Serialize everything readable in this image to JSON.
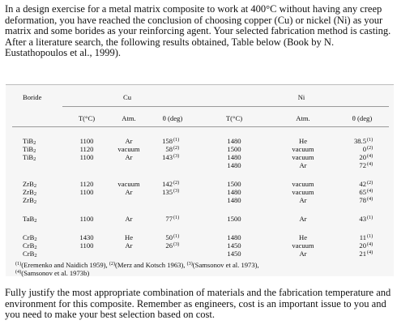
{
  "intro_text": "In a design exercise for a metal matrix composite to work at 400°C without having any creep deformation, you have reached the conclusion of choosing copper (Cu) or nickel (Ni) as your matrix and some borides as your reinforcing agent. Your selected fabrication method is casting. After a literature search, the following results obtained, Table below (Book by N. Eustathopoulos et al., 1999).",
  "table": {
    "boride_header": "Boride",
    "cu_header": "Cu",
    "ni_header": "Ni",
    "cu_t_header": "T(°C)",
    "cu_atm_header": "Atm.",
    "cu_theta_header": "θ (deg)",
    "ni_t_header": "T(°C)",
    "ni_atm_header": "Atm.",
    "ni_theta_header": "θ (deg)",
    "rows": [
      {
        "base": "TiB",
        "sub": "2",
        "cu_t": "1100",
        "cu_atm": "Ar",
        "cu_theta": "158",
        "cu_ref": "(1)",
        "ni_t": "1480",
        "ni_atm": "He",
        "ni_theta": "38.5",
        "ni_ref": "(1)"
      },
      {
        "base": "TiB",
        "sub": "2",
        "cu_t": "1120",
        "cu_atm": "vacuum",
        "cu_theta": "58",
        "cu_ref": "(2)",
        "ni_t": "1500",
        "ni_atm": "vacuum",
        "ni_theta": "0",
        "ni_ref": "(2)"
      },
      {
        "base": "TiB",
        "sub": "2",
        "cu_t": "1100",
        "cu_atm": "Ar",
        "cu_theta": "143",
        "cu_ref": "(3)",
        "ni_t": "1480",
        "ni_atm": "vacuum",
        "ni_theta": "20",
        "ni_ref": "(4)"
      },
      {
        "base": "",
        "sub": "",
        "cu_t": "",
        "cu_atm": "",
        "cu_theta": "",
        "cu_ref": "",
        "ni_t": "1480",
        "ni_atm": "Ar",
        "ni_theta": "72",
        "ni_ref": "(4)"
      },
      {
        "base": "ZrB",
        "sub": "2",
        "cu_t": "1120",
        "cu_atm": "vacuum",
        "cu_theta": "142",
        "cu_ref": "(2)",
        "ni_t": "1500",
        "ni_atm": "vacuum",
        "ni_theta": "42",
        "ni_ref": "(2)"
      },
      {
        "base": "ZrB",
        "sub": "2",
        "cu_t": "1100",
        "cu_atm": "Ar",
        "cu_theta": "135",
        "cu_ref": "(3)",
        "ni_t": "1480",
        "ni_atm": "vacuum",
        "ni_theta": "65",
        "ni_ref": "(4)"
      },
      {
        "base": "ZrB",
        "sub": "2",
        "cu_t": "",
        "cu_atm": "",
        "cu_theta": "",
        "cu_ref": "",
        "ni_t": "1480",
        "ni_atm": "Ar",
        "ni_theta": "78",
        "ni_ref": "(4)"
      },
      {
        "base": "TaB",
        "sub": "2",
        "cu_t": "1100",
        "cu_atm": "Ar",
        "cu_theta": "77",
        "cu_ref": "(1)",
        "ni_t": "1500",
        "ni_atm": "Ar",
        "ni_theta": "43",
        "ni_ref": "(1)"
      },
      {
        "base": "CrB",
        "sub": "2",
        "cu_t": "1430",
        "cu_atm": "He",
        "cu_theta": "50",
        "cu_ref": "(1)",
        "ni_t": "1480",
        "ni_atm": "He",
        "ni_theta": "11",
        "ni_ref": "(1)"
      },
      {
        "base": "CrB",
        "sub": "2",
        "cu_t": "1100",
        "cu_atm": "Ar",
        "cu_theta": "26",
        "cu_ref": "(3)",
        "ni_t": "1450",
        "ni_atm": "vacuum",
        "ni_theta": "20",
        "ni_ref": "(4)"
      },
      {
        "base": "CrB",
        "sub": "2",
        "cu_t": "",
        "cu_atm": "",
        "cu_theta": "",
        "cu_ref": "",
        "ni_t": "1450",
        "ni_atm": "Ar",
        "ni_theta": "21",
        "ni_ref": "(4)"
      }
    ],
    "references": [
      {
        "mark": "(1)",
        "text": "(Eremenko and Naidich 1959), "
      },
      {
        "mark": "(2)",
        "text": "(Merz and Kotsch 1963), "
      },
      {
        "mark": "(3)",
        "text": "(Samsonov et al. 1973),"
      },
      {
        "mark": "(4)",
        "text": "(Samsonov et al. 1973b)"
      }
    ]
  },
  "outro_text": "Fully justify the most appropriate combination of materials and the fabrication temperature and environment for this composite. Remember as engineers, cost is an important issue to you and you need to make your best selection based on cost."
}
